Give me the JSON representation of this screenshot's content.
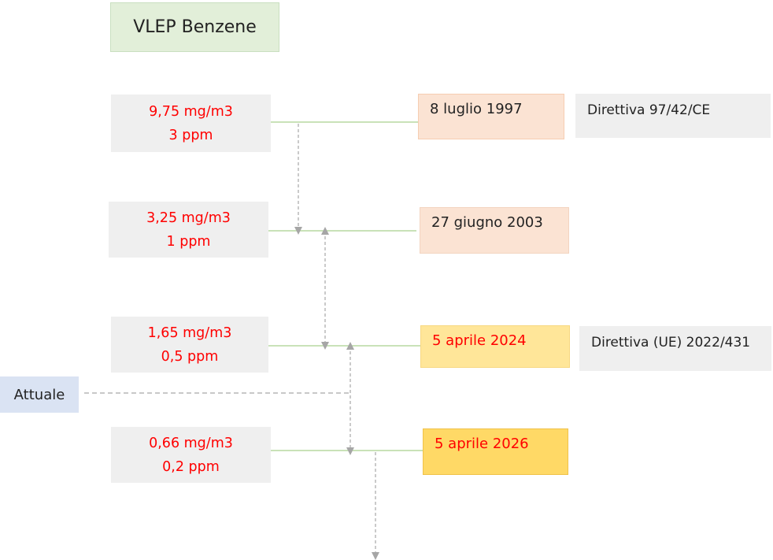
{
  "title": "VLEP Benzene",
  "limits": [
    {
      "mg": "9,75 mg/m3",
      "ppm": "3 ppm",
      "date": "8 luglio 1997",
      "directive": "Direttiva 97/42/CE"
    },
    {
      "mg": "3,25 mg/m3",
      "ppm": "1 ppm",
      "date": "27 giugno 2003",
      "directive": ""
    },
    {
      "mg": "1,65 mg/m3",
      "ppm": "0,5 ppm",
      "date": "5 aprile 2024",
      "directive": "Direttiva (UE) 2022/431"
    },
    {
      "mg": "0,66 mg/m3",
      "ppm": "0,2 ppm",
      "date": "5 aprile 2026",
      "directive": ""
    }
  ],
  "current_marker": "Attuale",
  "colors": {
    "value_text": "#ff0000",
    "timeline_line": "#a9d18e",
    "dashed_arrow": "#a6a6a6"
  }
}
